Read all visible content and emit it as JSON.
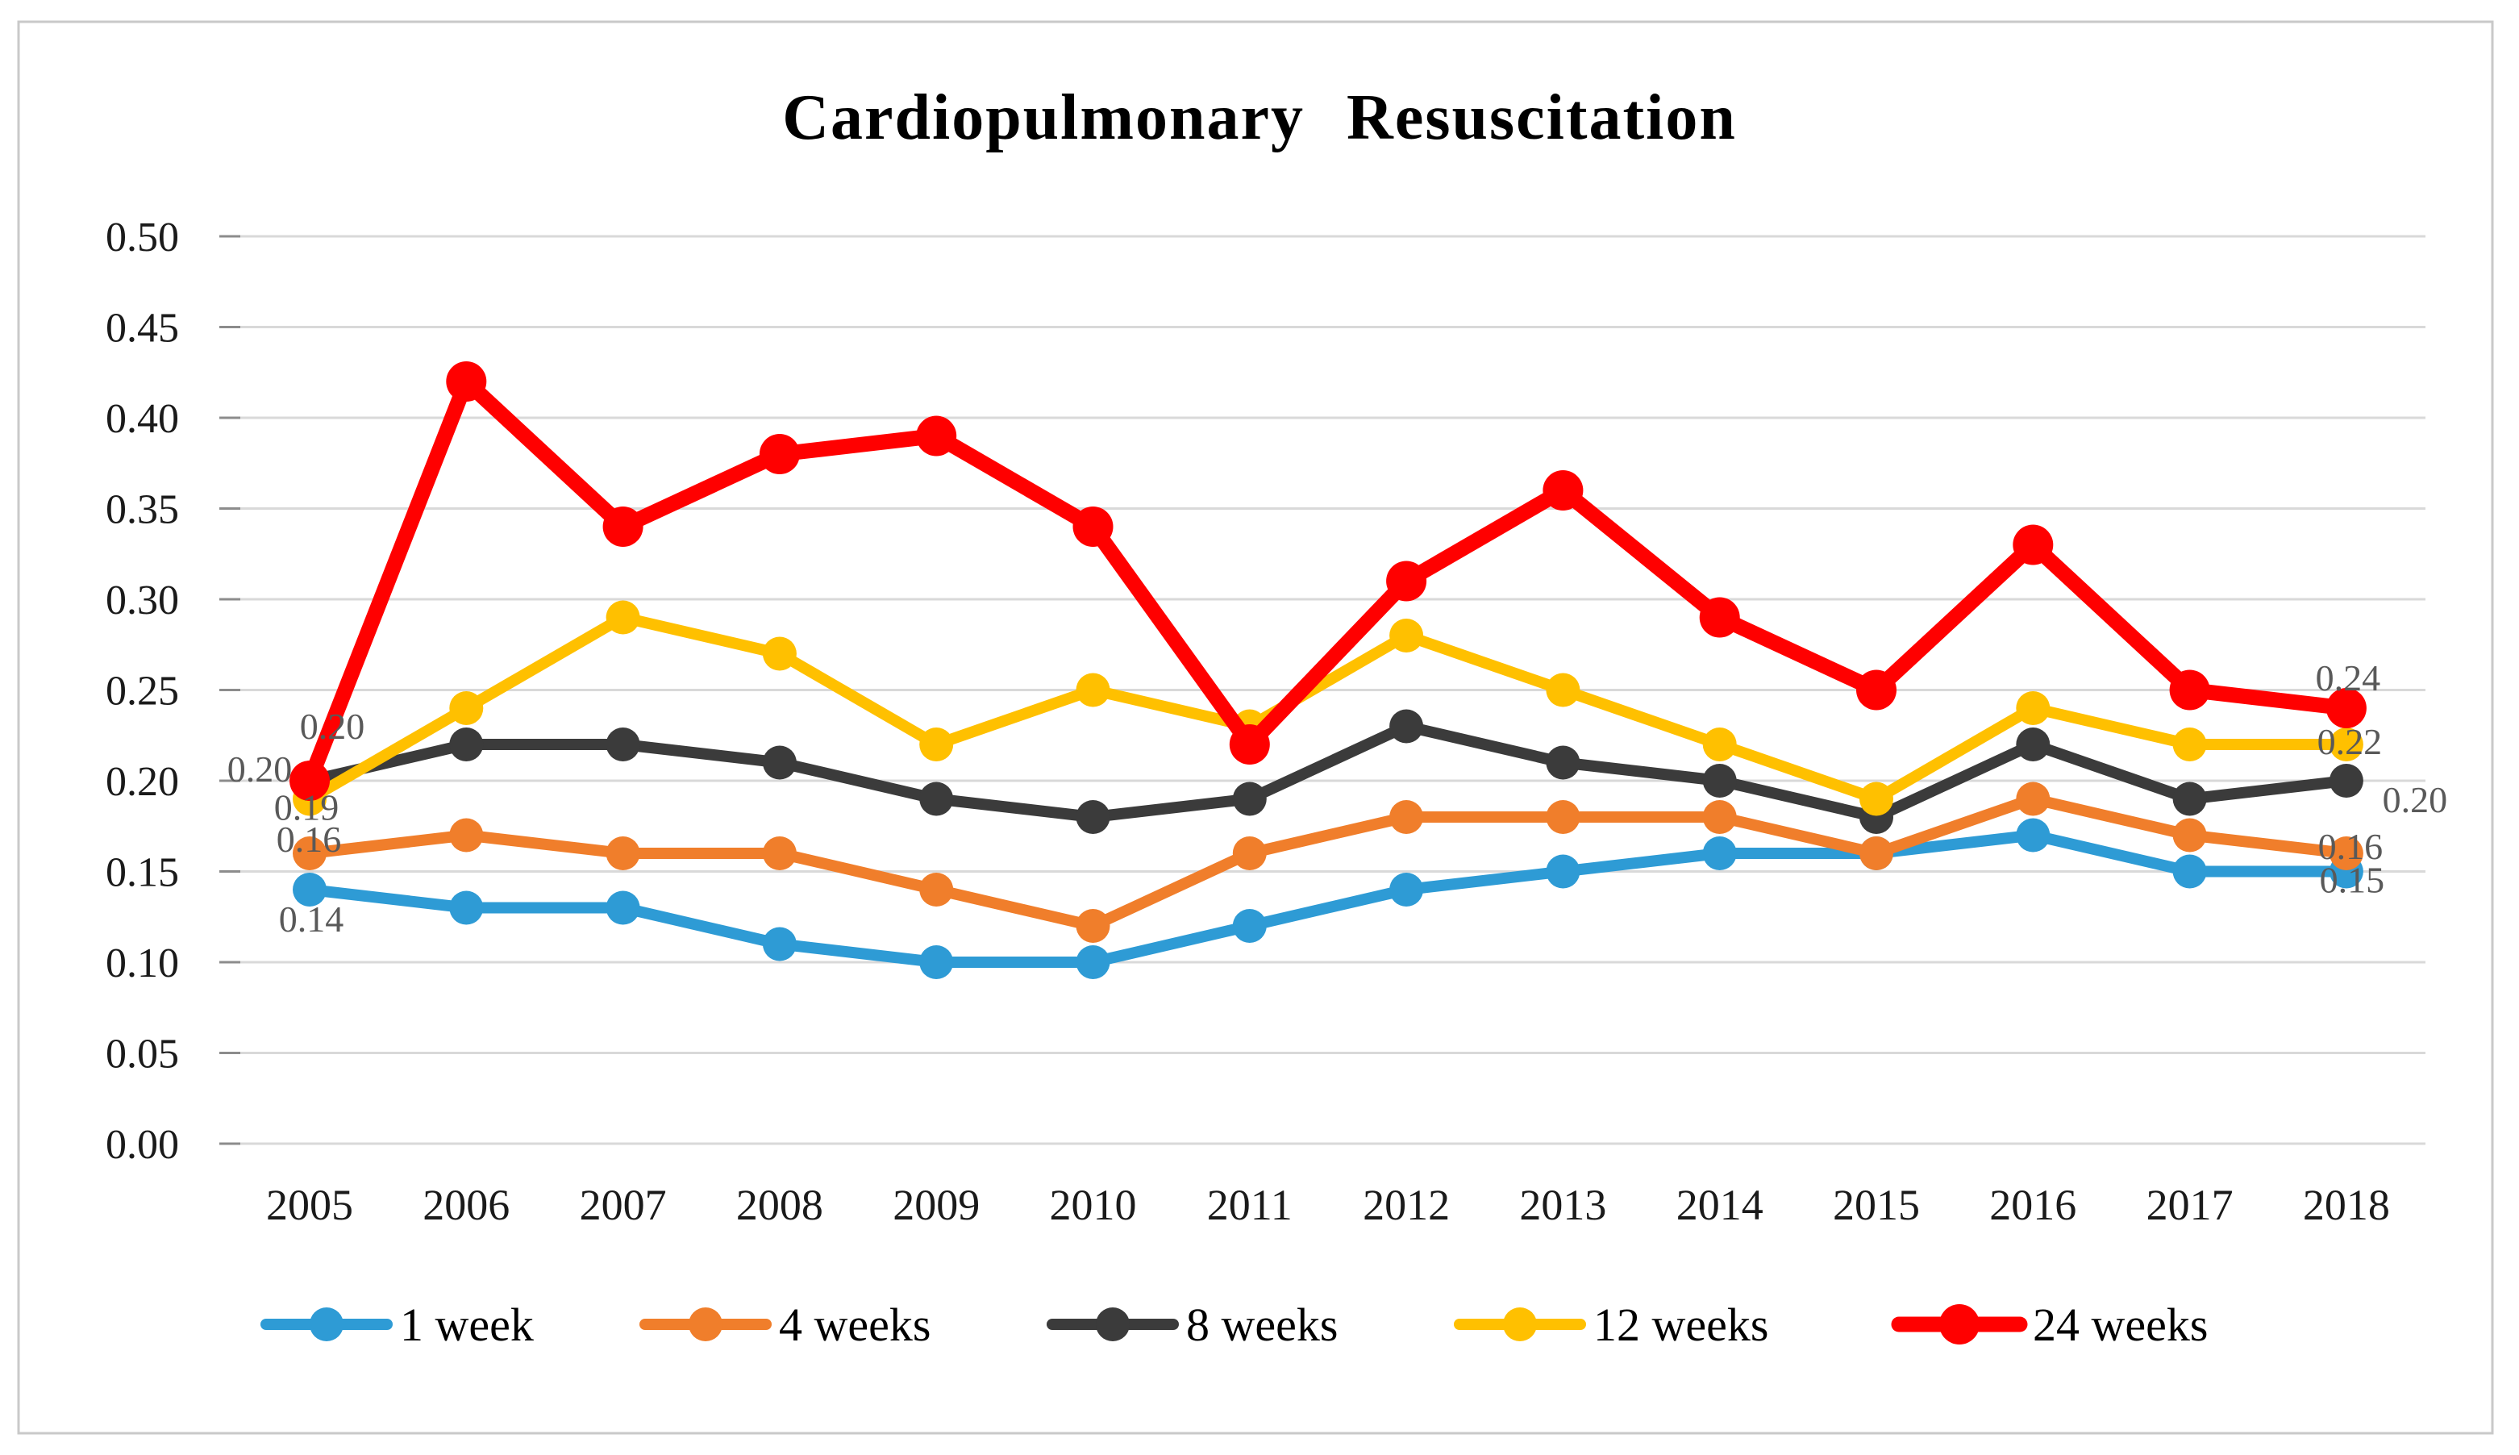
{
  "page": {
    "background": "#FFFFFF",
    "border_color": "#C9C9C9"
  },
  "chart_data": {
    "type": "line",
    "title": "Cardiopulmonary Resuscitation",
    "categories": [
      "2005",
      "2006",
      "2007",
      "2008",
      "2009",
      "2010",
      "2011",
      "2012",
      "2013",
      "2014",
      "2015",
      "2016",
      "2017",
      "2018"
    ],
    "series": [
      {
        "name": "1 week",
        "color": "#2E9BD5",
        "values": [
          0.14,
          0.13,
          0.13,
          0.11,
          0.1,
          0.1,
          0.12,
          0.14,
          0.15,
          0.16,
          0.16,
          0.17,
          0.15,
          0.15
        ],
        "first_label": "0.14",
        "last_label": "0.15"
      },
      {
        "name": "4 weeks",
        "color": "#F07E2B",
        "values": [
          0.16,
          0.17,
          0.16,
          0.16,
          0.14,
          0.12,
          0.16,
          0.18,
          0.18,
          0.18,
          0.16,
          0.19,
          0.17,
          0.16
        ],
        "first_label": "0.16",
        "last_label": "0.16"
      },
      {
        "name": "8 weeks",
        "color": "#3B3B3B",
        "values": [
          0.2,
          0.22,
          0.22,
          0.21,
          0.19,
          0.18,
          0.19,
          0.23,
          0.21,
          0.2,
          0.18,
          0.22,
          0.19,
          0.2
        ],
        "first_label": "0.20",
        "last_label": "0.20"
      },
      {
        "name": "12 weeks",
        "color": "#FFC000",
        "values": [
          0.19,
          0.24,
          0.29,
          0.27,
          0.22,
          0.25,
          0.23,
          0.28,
          0.25,
          0.22,
          0.19,
          0.24,
          0.22,
          0.22
        ],
        "first_label": "0.19",
        "last_label": "0.22"
      },
      {
        "name": "24 weeks",
        "color": "#FF0000",
        "values": [
          0.2,
          0.42,
          0.34,
          0.38,
          0.39,
          0.34,
          0.22,
          0.31,
          0.36,
          0.29,
          0.25,
          0.33,
          0.25,
          0.24
        ],
        "first_label": "0.20",
        "last_label": "0.24"
      }
    ],
    "xlabel": "",
    "ylabel": "",
    "ylim": [
      0.0,
      0.5
    ],
    "ytick_step": 0.05,
    "ytick_labels": [
      "0.00",
      "0.05",
      "0.10",
      "0.15",
      "0.20",
      "0.25",
      "0.30",
      "0.35",
      "0.40",
      "0.45",
      "0.50"
    ],
    "grid": true,
    "gridline_color": "#D9D9D9",
    "tick_color": "#8C8C8C",
    "axis_text_color": "#1A1A1A",
    "data_label_color": "#595959",
    "legend_position": "bottom"
  }
}
